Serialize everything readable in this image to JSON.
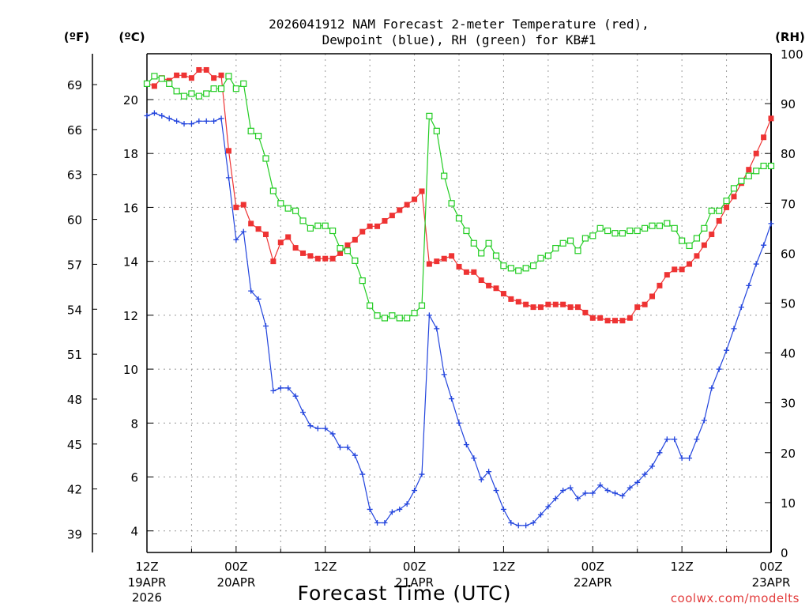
{
  "chart_data": {
    "type": "line",
    "title_line1": "2026041912 NAM Forecast 2-meter Temperature (red),",
    "title_line2": "Dewpoint (blue), RH (green) for KB#1",
    "xlabel": "Forecast Time (UTC)",
    "ylabel_left_f": "(ºF)",
    "ylabel_left_c": "(ºC)",
    "ylabel_right": "(RH)",
    "credit": "coolwx.com/modelts",
    "x_range_hours": [
      0,
      84
    ],
    "y_c_range": [
      3.2,
      21.7
    ],
    "y_rh_range": [
      0,
      100
    ],
    "grid": true,
    "x_ticks": [
      {
        "h": 0,
        "l1": "12Z",
        "l2": "19APR",
        "l3": "2026"
      },
      {
        "h": 12,
        "l1": "00Z",
        "l2": "20APR",
        "l3": ""
      },
      {
        "h": 24,
        "l1": "12Z",
        "l2": "",
        "l3": ""
      },
      {
        "h": 36,
        "l1": "00Z",
        "l2": "21APR",
        "l3": ""
      },
      {
        "h": 48,
        "l1": "12Z",
        "l2": "",
        "l3": ""
      },
      {
        "h": 60,
        "l1": "00Z",
        "l2": "22APR",
        "l3": ""
      },
      {
        "h": 72,
        "l1": "12Z",
        "l2": "",
        "l3": ""
      },
      {
        "h": 84,
        "l1": "00Z",
        "l2": "23APR",
        "l3": ""
      }
    ],
    "y_c_ticks": [
      4,
      6,
      8,
      10,
      12,
      14,
      16,
      18,
      20
    ],
    "y_f_ticks": [
      39,
      42,
      45,
      48,
      51,
      54,
      57,
      60,
      63,
      66,
      69
    ],
    "y_rh_ticks": [
      0,
      10,
      20,
      30,
      40,
      50,
      60,
      70,
      80,
      90,
      100
    ],
    "series": [
      {
        "name": "Temperature",
        "unit": "C",
        "color": "#ee3333",
        "marker": "square-filled",
        "values": [
          [
            0,
            20.6
          ],
          [
            1,
            20.5
          ],
          [
            2,
            20.8
          ],
          [
            3,
            20.7
          ],
          [
            4,
            20.9
          ],
          [
            5,
            20.9
          ],
          [
            6,
            20.8
          ],
          [
            7,
            21.1
          ],
          [
            8,
            21.1
          ],
          [
            9,
            20.8
          ],
          [
            10,
            20.9
          ],
          [
            11,
            18.1
          ],
          [
            12,
            16.0
          ],
          [
            13,
            16.1
          ],
          [
            14,
            15.4
          ],
          [
            15,
            15.2
          ],
          [
            16,
            15.0
          ],
          [
            17,
            14.0
          ],
          [
            18,
            14.7
          ],
          [
            19,
            14.9
          ],
          [
            20,
            14.5
          ],
          [
            21,
            14.3
          ],
          [
            22,
            14.2
          ],
          [
            23,
            14.1
          ],
          [
            24,
            14.1
          ],
          [
            25,
            14.1
          ],
          [
            26,
            14.3
          ],
          [
            27,
            14.6
          ],
          [
            28,
            14.8
          ],
          [
            29,
            15.1
          ],
          [
            30,
            15.3
          ],
          [
            31,
            15.3
          ],
          [
            32,
            15.5
          ],
          [
            33,
            15.7
          ],
          [
            34,
            15.9
          ],
          [
            35,
            16.1
          ],
          [
            36,
            16.3
          ],
          [
            37,
            16.6
          ],
          [
            38,
            13.9
          ],
          [
            39,
            14.0
          ],
          [
            40,
            14.1
          ],
          [
            41,
            14.2
          ],
          [
            42,
            13.8
          ],
          [
            43,
            13.6
          ],
          [
            44,
            13.6
          ],
          [
            45,
            13.3
          ],
          [
            46,
            13.1
          ],
          [
            47,
            13.0
          ],
          [
            48,
            12.8
          ],
          [
            49,
            12.6
          ],
          [
            50,
            12.5
          ],
          [
            51,
            12.4
          ],
          [
            52,
            12.3
          ],
          [
            53,
            12.3
          ],
          [
            54,
            12.4
          ],
          [
            55,
            12.4
          ],
          [
            56,
            12.4
          ],
          [
            57,
            12.3
          ],
          [
            58,
            12.3
          ],
          [
            59,
            12.1
          ],
          [
            60,
            11.9
          ],
          [
            61,
            11.9
          ],
          [
            62,
            11.8
          ],
          [
            63,
            11.8
          ],
          [
            64,
            11.8
          ],
          [
            65,
            11.9
          ],
          [
            66,
            12.3
          ],
          [
            67,
            12.4
          ],
          [
            68,
            12.7
          ],
          [
            69,
            13.1
          ],
          [
            70,
            13.5
          ],
          [
            71,
            13.7
          ],
          [
            72,
            13.7
          ],
          [
            73,
            13.9
          ],
          [
            74,
            14.2
          ],
          [
            75,
            14.6
          ],
          [
            76,
            15.0
          ],
          [
            77,
            15.5
          ],
          [
            78,
            16.0
          ],
          [
            79,
            16.4
          ],
          [
            80,
            16.9
          ],
          [
            81,
            17.4
          ],
          [
            82,
            18.0
          ],
          [
            83,
            18.6
          ],
          [
            84,
            19.3
          ]
        ]
      },
      {
        "name": "Dewpoint",
        "unit": "C",
        "color": "#2244dd",
        "marker": "plus",
        "values": [
          [
            0,
            19.4
          ],
          [
            1,
            19.5
          ],
          [
            2,
            19.4
          ],
          [
            3,
            19.3
          ],
          [
            4,
            19.2
          ],
          [
            5,
            19.1
          ],
          [
            6,
            19.1
          ],
          [
            7,
            19.2
          ],
          [
            8,
            19.2
          ],
          [
            9,
            19.2
          ],
          [
            10,
            19.3
          ],
          [
            11,
            17.1
          ],
          [
            12,
            14.8
          ],
          [
            13,
            15.1
          ],
          [
            14,
            12.9
          ],
          [
            15,
            12.6
          ],
          [
            16,
            11.6
          ],
          [
            17,
            9.2
          ],
          [
            18,
            9.3
          ],
          [
            19,
            9.3
          ],
          [
            20,
            9.0
          ],
          [
            21,
            8.4
          ],
          [
            22,
            7.9
          ],
          [
            23,
            7.8
          ],
          [
            24,
            7.8
          ],
          [
            25,
            7.6
          ],
          [
            26,
            7.1
          ],
          [
            27,
            7.1
          ],
          [
            28,
            6.8
          ],
          [
            29,
            6.1
          ],
          [
            30,
            4.8
          ],
          [
            31,
            4.3
          ],
          [
            32,
            4.3
          ],
          [
            33,
            4.7
          ],
          [
            34,
            4.8
          ],
          [
            35,
            5.0
          ],
          [
            36,
            5.5
          ],
          [
            37,
            6.1
          ],
          [
            38,
            12.0
          ],
          [
            39,
            11.5
          ],
          [
            40,
            9.8
          ],
          [
            41,
            8.9
          ],
          [
            42,
            8.0
          ],
          [
            43,
            7.2
          ],
          [
            44,
            6.7
          ],
          [
            45,
            5.9
          ],
          [
            46,
            6.2
          ],
          [
            47,
            5.5
          ],
          [
            48,
            4.8
          ],
          [
            49,
            4.3
          ],
          [
            50,
            4.2
          ],
          [
            51,
            4.2
          ],
          [
            52,
            4.3
          ],
          [
            53,
            4.6
          ],
          [
            54,
            4.9
          ],
          [
            55,
            5.2
          ],
          [
            56,
            5.5
          ],
          [
            57,
            5.6
          ],
          [
            58,
            5.2
          ],
          [
            59,
            5.4
          ],
          [
            60,
            5.4
          ],
          [
            61,
            5.7
          ],
          [
            62,
            5.5
          ],
          [
            63,
            5.4
          ],
          [
            64,
            5.3
          ],
          [
            65,
            5.6
          ],
          [
            66,
            5.8
          ],
          [
            67,
            6.1
          ],
          [
            68,
            6.4
          ],
          [
            69,
            6.9
          ],
          [
            70,
            7.4
          ],
          [
            71,
            7.4
          ],
          [
            72,
            6.7
          ],
          [
            73,
            6.7
          ],
          [
            74,
            7.4
          ],
          [
            75,
            8.1
          ],
          [
            76,
            9.3
          ],
          [
            77,
            10.0
          ],
          [
            78,
            10.7
          ],
          [
            79,
            11.5
          ],
          [
            80,
            12.3
          ],
          [
            81,
            13.1
          ],
          [
            82,
            13.9
          ],
          [
            83,
            14.6
          ],
          [
            84,
            15.4
          ]
        ]
      },
      {
        "name": "RH",
        "unit": "%",
        "color": "#22cc22",
        "marker": "square-open",
        "values": [
          [
            0,
            94
          ],
          [
            1,
            95.5
          ],
          [
            2,
            95
          ],
          [
            3,
            94
          ],
          [
            4,
            92.5
          ],
          [
            5,
            91.5
          ],
          [
            6,
            92
          ],
          [
            7,
            91.5
          ],
          [
            8,
            92
          ],
          [
            9,
            93
          ],
          [
            10,
            93
          ],
          [
            11,
            95.5
          ],
          [
            12,
            93
          ],
          [
            13,
            94
          ],
          [
            14,
            84.5
          ],
          [
            15,
            83.5
          ],
          [
            16,
            79
          ],
          [
            17,
            72.5
          ],
          [
            18,
            70
          ],
          [
            19,
            69
          ],
          [
            20,
            68.5
          ],
          [
            21,
            66.5
          ],
          [
            22,
            65
          ],
          [
            23,
            65.5
          ],
          [
            24,
            65.5
          ],
          [
            25,
            64.5
          ],
          [
            26,
            61
          ],
          [
            27,
            60.5
          ],
          [
            28,
            58.5
          ],
          [
            29,
            54.5
          ],
          [
            30,
            49.5
          ],
          [
            31,
            47.5
          ],
          [
            32,
            47
          ],
          [
            33,
            47.5
          ],
          [
            34,
            47
          ],
          [
            35,
            47
          ],
          [
            36,
            48
          ],
          [
            37,
            49.5
          ],
          [
            38,
            87.5
          ],
          [
            39,
            84.5
          ],
          [
            40,
            75.5
          ],
          [
            41,
            70
          ],
          [
            42,
            67
          ],
          [
            43,
            64.5
          ],
          [
            44,
            62
          ],
          [
            45,
            60
          ],
          [
            46,
            62
          ],
          [
            47,
            59.5
          ],
          [
            48,
            57.5
          ],
          [
            49,
            57
          ],
          [
            50,
            56.5
          ],
          [
            51,
            57
          ],
          [
            52,
            57.5
          ],
          [
            53,
            59
          ],
          [
            54,
            59.5
          ],
          [
            55,
            61
          ],
          [
            56,
            62
          ],
          [
            57,
            62.5
          ],
          [
            58,
            60.5
          ],
          [
            59,
            63
          ],
          [
            60,
            63.5
          ],
          [
            61,
            65
          ],
          [
            62,
            64.5
          ],
          [
            63,
            64
          ],
          [
            64,
            64
          ],
          [
            65,
            64.5
          ],
          [
            66,
            64.5
          ],
          [
            67,
            65
          ],
          [
            68,
            65.5
          ],
          [
            69,
            65.5
          ],
          [
            70,
            66
          ],
          [
            71,
            65
          ],
          [
            72,
            62.5
          ],
          [
            73,
            61.5
          ],
          [
            74,
            63
          ],
          [
            75,
            65
          ],
          [
            76,
            68.5
          ],
          [
            77,
            68.5
          ],
          [
            78,
            70.5
          ],
          [
            79,
            73
          ],
          [
            80,
            74.5
          ],
          [
            81,
            75.5
          ],
          [
            82,
            76.5
          ],
          [
            83,
            77.5
          ],
          [
            84,
            77.5
          ]
        ]
      }
    ]
  }
}
